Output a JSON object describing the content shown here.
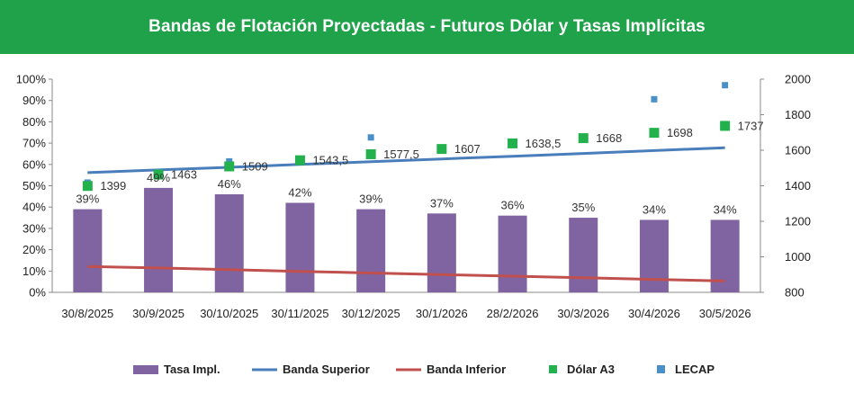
{
  "title": "Bandas de Flotación Proyectadas - Futuros Dólar y Tasas Implícitas",
  "colors": {
    "header": "#1fa24a",
    "bars": "#8064a2",
    "banda_superior": "#4a7ebb",
    "banda_inferior": "#c0504d",
    "dolar_a3": "#22b14c",
    "lecap": "#4a90c8"
  },
  "chart_data": {
    "type": "bar",
    "categories": [
      "30/8/2025",
      "30/9/2025",
      "30/10/2025",
      "30/11/2025",
      "30/12/2025",
      "30/1/2026",
      "28/2/2026",
      "30/3/2026",
      "30/4/2026",
      "30/5/2026"
    ],
    "left_axis": {
      "ticks": [
        "0%",
        "10%",
        "20%",
        "30%",
        "40%",
        "50%",
        "60%",
        "70%",
        "80%",
        "90%",
        "100%"
      ],
      "ylim": [
        0,
        100
      ]
    },
    "right_axis": {
      "ticks": [
        "800",
        "1000",
        "1200",
        "1400",
        "1600",
        "1800",
        "2000"
      ],
      "ylim": [
        800,
        2000
      ]
    },
    "series": [
      {
        "name": "Tasa Impl.",
        "type": "bar",
        "axis": "left",
        "values": [
          39,
          49,
          46,
          42,
          39,
          37,
          36,
          35,
          34,
          34
        ],
        "labels": [
          "39%",
          "49%",
          "46%",
          "42%",
          "39%",
          "37%",
          "36%",
          "35%",
          "34%",
          "34%"
        ]
      },
      {
        "name": "Banda Superior",
        "type": "line",
        "axis": "right",
        "values": [
          1474,
          1489,
          1504,
          1520,
          1535,
          1551,
          1566,
          1582,
          1598,
          1614
        ]
      },
      {
        "name": "Banda Inferior",
        "type": "line",
        "axis": "right",
        "values": [
          946,
          937,
          928,
          918,
          909,
          900,
          891,
          882,
          873,
          864
        ]
      },
      {
        "name": "Dólar A3",
        "type": "scatter",
        "axis": "right",
        "values": [
          1399,
          1463,
          1509,
          1543.5,
          1577.5,
          1607,
          1638.5,
          1668,
          1698,
          1737
        ],
        "labels": [
          "1399",
          "1463",
          "1509",
          "1543,5",
          "1577,5",
          "1607",
          "1638,5",
          "1668",
          "1698",
          "1737"
        ]
      },
      {
        "name": "LECAP",
        "type": "scatter",
        "axis": "right",
        "values": [
          1418,
          1478,
          1537,
          null,
          1672,
          null,
          null,
          null,
          1887,
          1966
        ]
      }
    ],
    "legend_position": "bottom",
    "grid": false
  }
}
